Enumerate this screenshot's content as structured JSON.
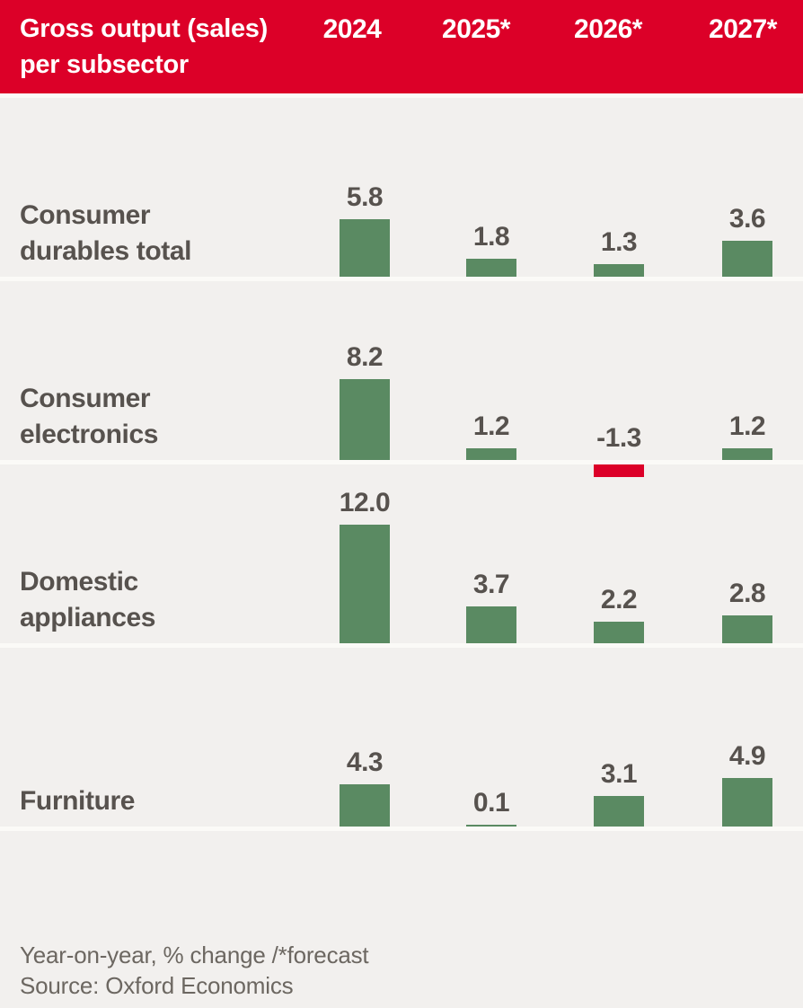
{
  "header": {
    "title_line1": "Gross output (sales)",
    "title_line2": "per subsector",
    "columns": [
      "2024",
      "2025*",
      "2026*",
      "2027*"
    ]
  },
  "rows": [
    {
      "label_line1": "Consumer",
      "label_line2": "durables total",
      "values": [
        "5.8",
        "1.8",
        "1.3",
        "3.6"
      ]
    },
    {
      "label_line1": "Consumer",
      "label_line2": "electronics",
      "values": [
        "8.2",
        "1.2",
        "-1.3",
        "1.2"
      ]
    },
    {
      "label_line1": "Domestic",
      "label_line2": "appliances",
      "values": [
        "12.0",
        "3.7",
        "2.2",
        "2.8"
      ]
    },
    {
      "label_line1": "Furniture",
      "label_line2": "",
      "values": [
        "4.3",
        "0.1",
        "3.1",
        "4.9"
      ]
    }
  ],
  "footer": {
    "note": "Year-on-year, % change /*forecast",
    "source": "Source: Oxford Economics"
  },
  "chart_data": {
    "type": "bar",
    "title": "Gross output (sales) per subsector",
    "categories": [
      "2024",
      "2025*",
      "2026*",
      "2027*"
    ],
    "series": [
      {
        "name": "Consumer durables total",
        "values": [
          5.8,
          1.8,
          1.3,
          3.6
        ]
      },
      {
        "name": "Consumer electronics",
        "values": [
          8.2,
          1.2,
          -1.3,
          1.2
        ]
      },
      {
        "name": "Domestic appliances",
        "values": [
          12.0,
          3.7,
          2.2,
          2.8
        ]
      },
      {
        "name": "Furniture",
        "values": [
          4.3,
          0.1,
          3.1,
          4.9
        ]
      }
    ],
    "ylabel": "Year-on-year, % change",
    "note": "* = forecast",
    "source": "Oxford Economics",
    "grid": false,
    "legend_position": "none",
    "value_labels_shown": true
  },
  "colors": {
    "header_bg": "#dc0028",
    "header_text": "#ffffff",
    "bar_positive": "#5a8a62",
    "bar_negative": "#dc0028",
    "background": "#f2f0ee",
    "separator": "#fbfaf7",
    "text_dark": "#57524e",
    "text_muted": "#6c6761"
  }
}
